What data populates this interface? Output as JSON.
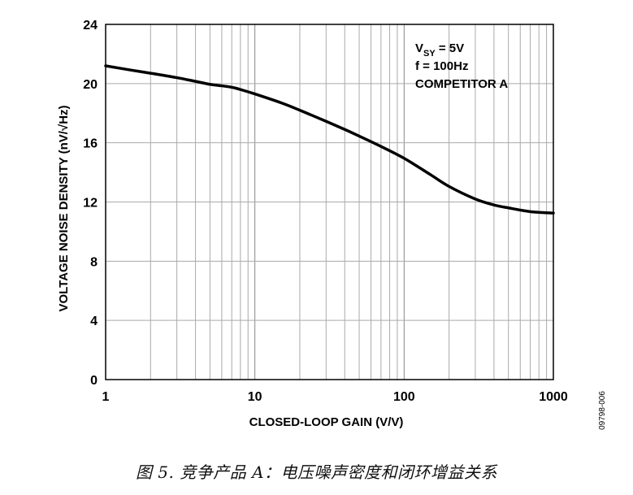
{
  "chart_data": {
    "type": "line",
    "xscale": "log",
    "xlim": [
      1,
      1000
    ],
    "ylim": [
      0,
      24
    ],
    "xlabel": "CLOSED-LOOP GAIN (V/V)",
    "ylabel": "VOLTAGE NOISE DENSITY (nV/√Hz)",
    "xticks": [
      "1",
      "10",
      "100",
      "1000"
    ],
    "yticks": [
      "0",
      "4",
      "8",
      "12",
      "16",
      "20",
      "24"
    ],
    "grid": true,
    "annotations": [
      {
        "main": "V",
        "sub": "SY",
        "rest": " = 5V"
      },
      {
        "main": "f = 100Hz"
      },
      {
        "main": "COMPETITOR A"
      }
    ],
    "series": [
      {
        "x": [
          1,
          1.5,
          2,
          3,
          4,
          5,
          6,
          7,
          8,
          10,
          15,
          20,
          30,
          40,
          50,
          70,
          100,
          150,
          200,
          300,
          400,
          500,
          700,
          1000
        ],
        "y": [
          21.2,
          20.9,
          20.7,
          20.4,
          20.15,
          19.95,
          19.85,
          19.75,
          19.6,
          19.3,
          18.7,
          18.2,
          17.45,
          16.9,
          16.45,
          15.75,
          14.95,
          13.85,
          13.05,
          12.2,
          11.8,
          11.6,
          11.35,
          11.25
        ]
      }
    ]
  },
  "figure_id": "09798-006",
  "caption": "图 5. 竞争产品 A：电压噪声密度和闭环增益关系"
}
